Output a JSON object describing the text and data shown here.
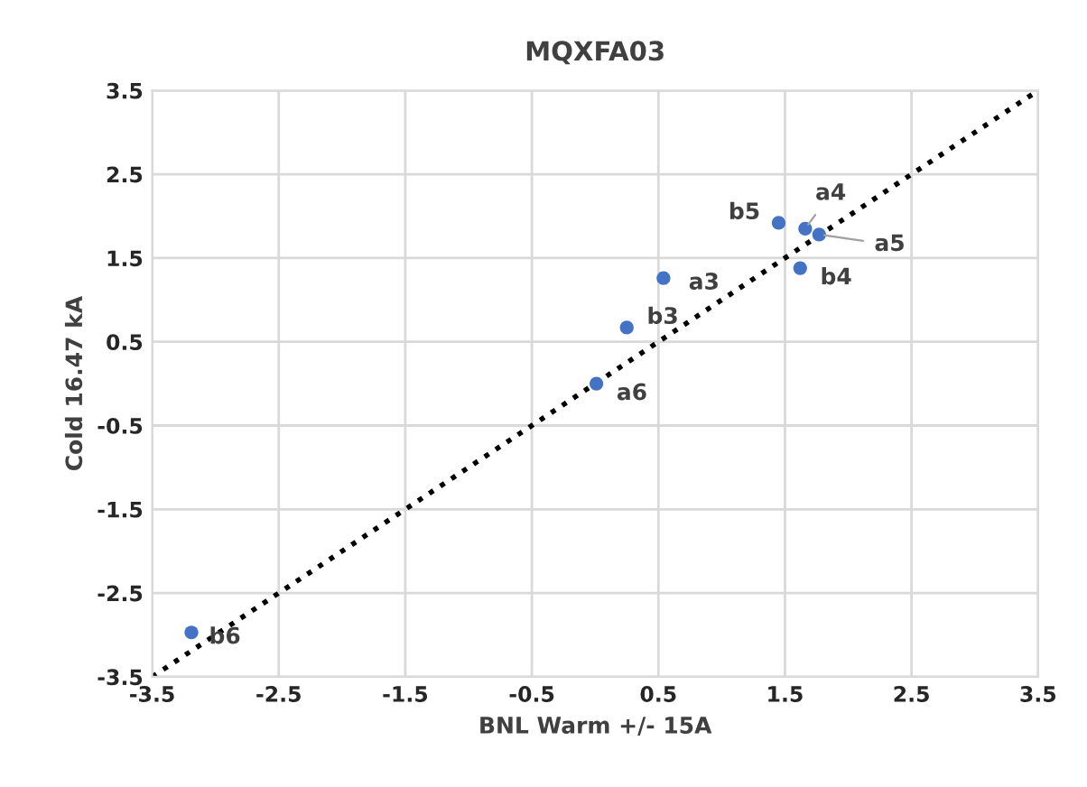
{
  "chart_data": {
    "type": "scatter",
    "title": "MQXFA03",
    "xlabel": "BNL Warm +/- 15A",
    "ylabel": "Cold 16.47 kA",
    "xlim": [
      -3.5,
      3.5
    ],
    "ylim": [
      -3.5,
      3.5
    ],
    "xticks": [
      -3.5,
      -2.5,
      -1.5,
      -0.5,
      0.5,
      1.5,
      2.5,
      3.5
    ],
    "yticks": [
      -3.5,
      -2.5,
      -1.5,
      -0.5,
      0.5,
      1.5,
      2.5,
      3.5
    ],
    "grid": true,
    "series": [
      {
        "color": "#4472c4",
        "marker": "circle",
        "x": [
          -3.19,
          0.01,
          0.25,
          0.54,
          1.45,
          1.66,
          1.77,
          1.62
        ],
        "values": [
          -2.97,
          0.0,
          0.67,
          1.26,
          1.92,
          1.85,
          1.78,
          1.38
        ]
      },
      {
        "type": "line",
        "color": "#000000",
        "line_style": "dotted",
        "marker": "none",
        "x": [
          -3.5,
          3.5
        ],
        "values": [
          -3.5,
          3.5
        ]
      }
    ],
    "annotations": [
      {
        "text": "b6",
        "x": -3.19,
        "y": -2.97
      },
      {
        "text": "a6",
        "x": 0.01,
        "y": 0.0
      },
      {
        "text": "b3",
        "x": 0.25,
        "y": 0.67
      },
      {
        "text": "a3",
        "x": 0.54,
        "y": 1.26
      },
      {
        "text": "b5",
        "x": 1.45,
        "y": 1.92
      },
      {
        "text": "a4",
        "x": 1.66,
        "y": 1.85
      },
      {
        "text": "a5",
        "x": 1.77,
        "y": 1.78
      },
      {
        "text": "b4",
        "x": 1.62,
        "y": 1.38
      }
    ]
  }
}
